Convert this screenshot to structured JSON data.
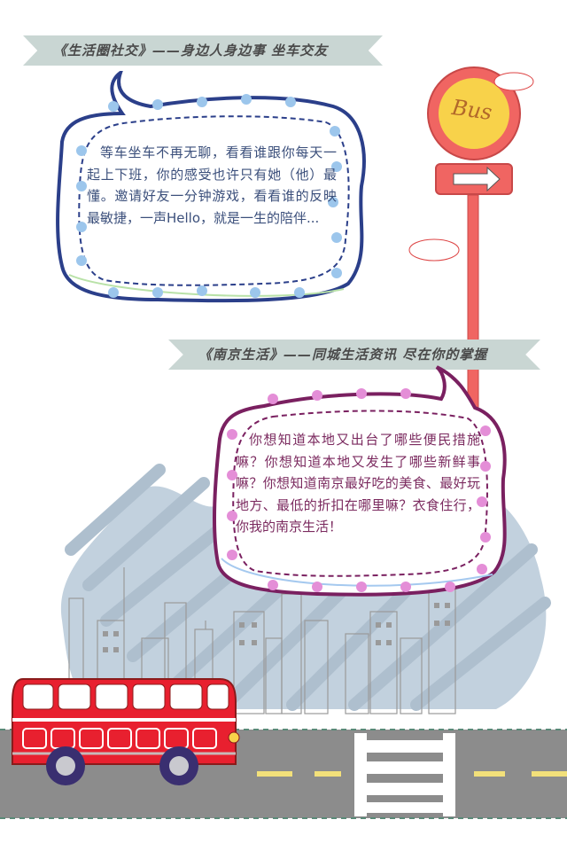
{
  "section1": {
    "heading": "《生活圈社交》——身边人身边事 坐车交友",
    "body": "等车坐车不再无聊，看看谁跟你每天一起上下班，你的感受也许只有她（他）最懂。邀请好友一分钟游戏，看看谁的反映最敏捷，一声Hello，就是一生的陪伴..."
  },
  "section2": {
    "heading": "《南京生活》——同城生活资讯 尽在你的掌握",
    "body": "你想知道本地又出台了哪些便民措施嘛？你想知道本地又发生了哪些新鲜事嘛？你想知道南京最好吃的美食、最好玩地方、最低的折扣在哪里嘛？衣食住行，你我的南京生活！"
  },
  "sign": {
    "label": "Bus",
    "icon": "arrow-right-icon"
  },
  "colors": {
    "ribbon": "#c9d6d3",
    "bubble1_border": "#2b3f8a",
    "bubble1_dots": "#9cc6ec",
    "bubble2_border": "#7a2060",
    "bubble2_dots": "#e48ed7",
    "bus_red": "#e8202f",
    "sign_red": "#f06562",
    "sign_yellow": "#f8d24a",
    "road": "#8c8c8c",
    "sky_scribble": "#bfcfdc"
  }
}
